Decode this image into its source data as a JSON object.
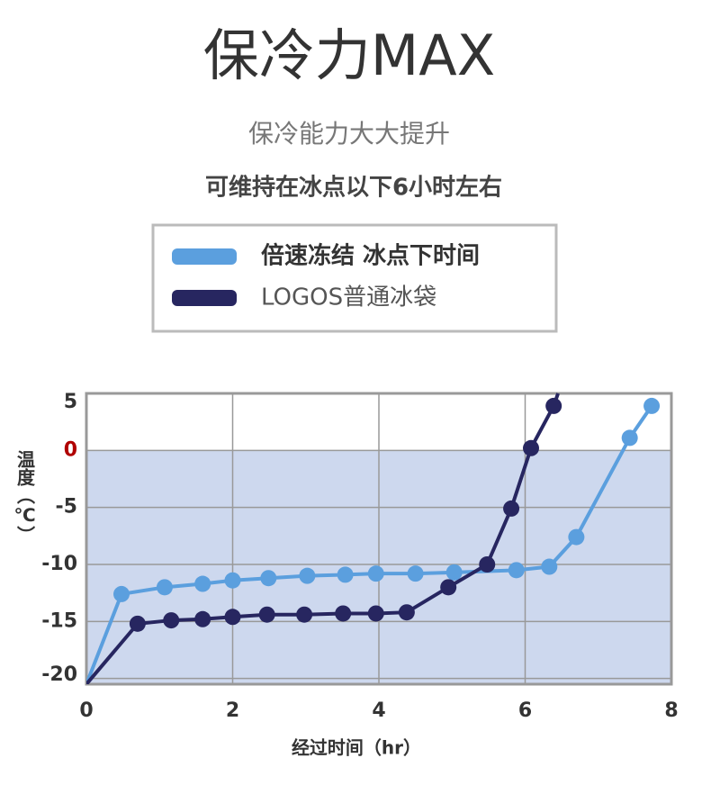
{
  "chart_data": {
    "type": "line",
    "title": "保冷力MAX",
    "subtitle": "保冷能力大大提升",
    "headline": "可维持在冰点以下6小时左右",
    "x_label": "经过时间（hr）",
    "y_label": "温度（℃）",
    "xlim": [
      0,
      8
    ],
    "xticks": [
      0,
      2,
      4,
      6,
      8
    ],
    "ylim": [
      -20.5,
      5
    ],
    "yticks": [
      5,
      0,
      -5,
      -10,
      -15,
      -20
    ],
    "zero_tick_color": "#b00000",
    "below_zero_fill": "#cdd8ee",
    "grid": true,
    "series": [
      {
        "name": "倍速冻结 冰点下时间",
        "color": "#5b9fde",
        "x": [
          0,
          0.48,
          1.07,
          1.59,
          2.0,
          2.49,
          3.02,
          3.54,
          3.96,
          4.5,
          5.03,
          5.88,
          6.33,
          6.7,
          7.43,
          7.73
        ],
        "values": [
          -20.5,
          -12.6,
          -12.0,
          -11.7,
          -11.4,
          -11.2,
          -11.0,
          -10.9,
          -10.8,
          -10.8,
          -10.7,
          -10.5,
          -10.2,
          -7.6,
          1.1,
          3.9
        ]
      },
      {
        "name": "LOGOS普通冰袋",
        "color": "#272660",
        "x": [
          0,
          0.7,
          1.16,
          1.59,
          2.0,
          2.47,
          2.98,
          3.51,
          3.96,
          4.38,
          4.95,
          5.48,
          5.81,
          6.08,
          6.39,
          6.45
        ],
        "values": [
          -20.5,
          -15.2,
          -14.9,
          -14.8,
          -14.6,
          -14.4,
          -14.4,
          -14.3,
          -14.3,
          -14.2,
          -12.0,
          -10.0,
          -5.1,
          0.2,
          3.9,
          5.0
        ]
      }
    ]
  }
}
